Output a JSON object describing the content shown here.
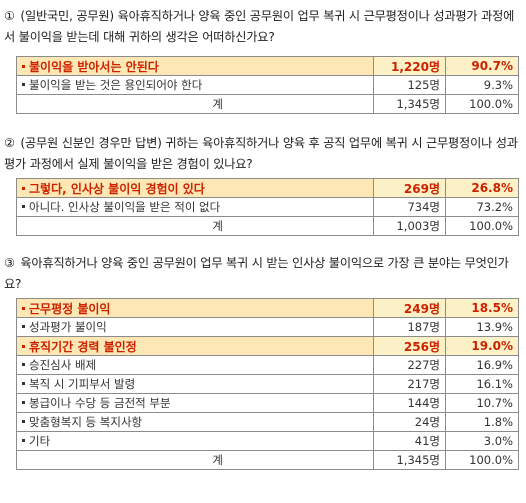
{
  "q1": {
    "number": "①",
    "text": "(일반국민, 공무원) 육아휴직하거나 양육 중인 공무원이 업무 복귀 시 근무평정이나 성과평가 과정에서 불이익을 받는데 대해 귀하의 생각은 어떠하신가요?",
    "rows": [
      {
        "label": "불이익을 받아서는 안된다",
        "count": "1,220명",
        "pct": "90.7%"
      },
      {
        "label": "불이익을 받는 것은 용인되어야 한다",
        "count": "125명",
        "pct": "9.3%"
      }
    ],
    "total": {
      "label": "계",
      "count": "1,345명",
      "pct": "100.0%"
    }
  },
  "q2": {
    "number": "②",
    "text": "(공무원 신분인 경우만 답변) 귀하는 육아휴직하거나 양육 후 공직 업무에 복귀 시 근무평정이나 성과평가 과정에서 실제 불이익을 받은 경험이 있나요?",
    "rows": [
      {
        "label": "그렇다, 인사상 불이익 경험이 있다",
        "count": "269명",
        "pct": "26.8%"
      },
      {
        "label": "아니다. 인사상 불이익을 받은 적이 없다",
        "count": "734명",
        "pct": "73.2%"
      }
    ],
    "total": {
      "label": "계",
      "count": "1,003명",
      "pct": "100.0%"
    }
  },
  "q3": {
    "number": "③",
    "text": "육아휴직하거나 양육 중인 공무원이 업무 복귀 시 받는 인사상 불이익으로 가장 큰 분야는 무엇인가요?",
    "rows": [
      {
        "label": "근무평정 불이익",
        "count": "249명",
        "pct": "18.5%"
      },
      {
        "label": "성과평가 불이익",
        "count": "187명",
        "pct": "13.9%"
      },
      {
        "label": "휴직기간 경력 불인정",
        "count": "256명",
        "pct": "19.0%"
      },
      {
        "label": "승진심사 배제",
        "count": "227명",
        "pct": "16.9%"
      },
      {
        "label": "복직 시 기피부서 발령",
        "count": "217명",
        "pct": "16.1%"
      },
      {
        "label": "봉급이나 수당 등 금전적 부분",
        "count": "144명",
        "pct": "10.7%"
      },
      {
        "label": "맞춤형복지 등 복지사항",
        "count": "24명",
        "pct": "1.8%"
      },
      {
        "label": "기타",
        "count": "41명",
        "pct": "3.0%"
      }
    ],
    "total": {
      "label": "계",
      "count": "1,345명",
      "pct": "100.0%"
    }
  }
}
